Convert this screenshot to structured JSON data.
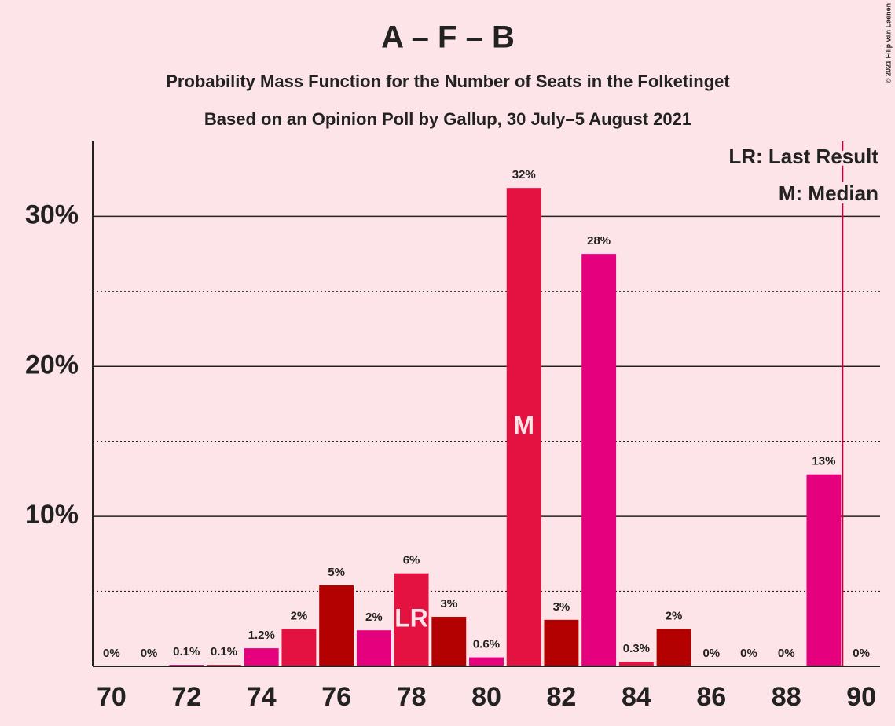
{
  "chart_data": {
    "type": "bar",
    "title": "A – F – B",
    "subtitle": "Probability Mass Function for the Number of Seats in the Folketinget",
    "subtitle2": "Based on an Opinion Poll by Gallup, 30 July–5 August 2021",
    "copyright": "© 2021 Filip van Laenen",
    "legend": [
      "LR: Last Result",
      "M: Median"
    ],
    "categories": [
      70,
      71,
      72,
      73,
      74,
      75,
      76,
      77,
      78,
      79,
      80,
      81,
      82,
      83,
      84,
      85,
      86,
      87,
      88,
      89,
      90
    ],
    "values": [
      0,
      0,
      0.1,
      0.1,
      1.2,
      2.5,
      5.4,
      2.4,
      6.2,
      3.3,
      0.6,
      31.9,
      3.1,
      27.5,
      0.3,
      2.5,
      0,
      0,
      0,
      12.8,
      0
    ],
    "value_labels": [
      "0%",
      "0%",
      "0.1%",
      "0.1%",
      "1.2%",
      "2%",
      "5%",
      "2%",
      "6%",
      "3%",
      "0.6%",
      "32%",
      "3%",
      "28%",
      "0.3%",
      "2%",
      "0%",
      "0%",
      "0%",
      "13%",
      "0%"
    ],
    "colors": [
      "#e31240",
      "#b30000",
      "#e5007d",
      "#e31240",
      "#e5007d",
      "#e31240",
      "#b30000",
      "#e5007d",
      "#e31240",
      "#b30000",
      "#e5007d",
      "#e31240",
      "#b30000",
      "#e5007d",
      "#e31240",
      "#b30000",
      "#e5007d",
      "#e31240",
      "#b30000",
      "#e5007d",
      "#e31240"
    ],
    "markers": [
      {
        "category": 81,
        "label": "M"
      },
      {
        "category": 78,
        "label": "LR"
      }
    ],
    "majority_line": 89.5,
    "xlim": [
      69.5,
      90.5
    ],
    "xticks": [
      70,
      72,
      74,
      76,
      78,
      80,
      82,
      84,
      86,
      88,
      90
    ],
    "ylim": [
      0,
      35
    ],
    "yticks": [
      {
        "value": 10,
        "label": "10%"
      },
      {
        "value": 20,
        "label": "20%"
      },
      {
        "value": 30,
        "label": "30%"
      }
    ],
    "minor_yticks": [
      5,
      15,
      25
    ]
  }
}
